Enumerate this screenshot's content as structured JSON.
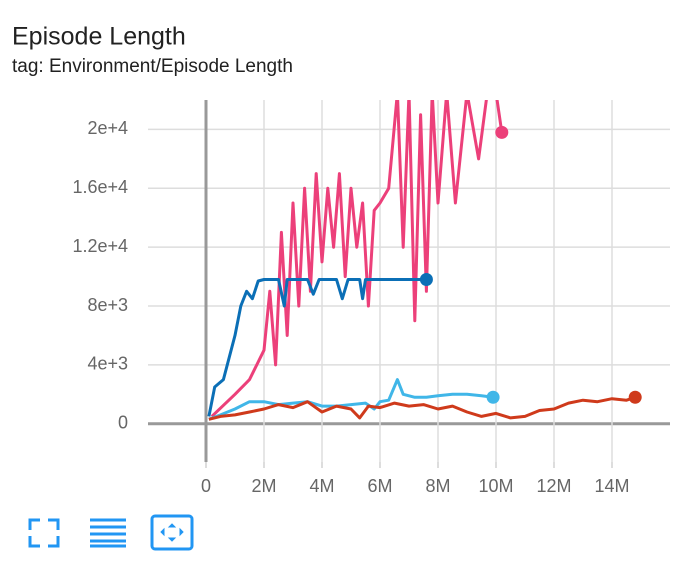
{
  "chart_data": {
    "type": "line",
    "title": "Episode Length",
    "subtitle": "tag: Environment/Episode Length",
    "xlim": [
      -2000000,
      16000000
    ],
    "ylim": [
      -2600,
      22000
    ],
    "xticks": [
      0,
      {
        "value": 2000000,
        "label": "2M"
      },
      {
        "value": 4000000,
        "label": "4M"
      },
      {
        "value": 6000000,
        "label": "6M"
      },
      {
        "value": 8000000,
        "label": "8M"
      },
      {
        "value": 10000000,
        "label": "10M"
      },
      {
        "value": 12000000,
        "label": "12M"
      },
      {
        "value": 14000000,
        "label": "14M"
      }
    ],
    "yticks": [
      0,
      {
        "value": 4000,
        "label": "4e+3"
      },
      {
        "value": 8000,
        "label": "8e+3"
      },
      {
        "value": 12000,
        "label": "1.2e+4"
      },
      {
        "value": 16000,
        "label": "1.6e+4"
      },
      {
        "value": 20000,
        "label": "2e+4"
      }
    ],
    "grid": true,
    "series": [
      {
        "color": "#ec407a",
        "x": [
          200000,
          1000000,
          1500000,
          2000000,
          2200000,
          2400000,
          2600000,
          2800000,
          3000000,
          3200000,
          3400000,
          3600000,
          3800000,
          4000000,
          4200000,
          4400000,
          4600000,
          4800000,
          5000000,
          5200000,
          5400000,
          5600000,
          5800000,
          6000000,
          6300000,
          6600000,
          6800000,
          7000000,
          7200000,
          7400000,
          7600000,
          7800000,
          8000000,
          8300000,
          8600000,
          9000000,
          9400000,
          9700000,
          10000000,
          10200000
        ],
        "values": [
          500,
          2000,
          3000,
          5000,
          9000,
          4000,
          13000,
          6000,
          15000,
          8000,
          16000,
          9000,
          17000,
          11000,
          16000,
          12000,
          17000,
          10000,
          16000,
          12000,
          15000,
          8000,
          14500,
          15000,
          16000,
          22500,
          12000,
          22500,
          7000,
          21000,
          9000,
          22500,
          15000,
          22500,
          15000,
          22500,
          18000,
          22500,
          22500,
          19800
        ]
      },
      {
        "color": "#40b6e8",
        "x": [
          100000,
          500000,
          1000000,
          1500000,
          2000000,
          2500000,
          3000000,
          3500000,
          4000000,
          4500000,
          5000000,
          5500000,
          5800000,
          6000000,
          6300000,
          6600000,
          6800000,
          7200000,
          7600000,
          8000000,
          8500000,
          9000000,
          9500000,
          9900000
        ],
        "values": [
          300,
          600,
          1000,
          1500,
          1500,
          1300,
          1400,
          1500,
          1200,
          1200,
          1300,
          1400,
          1000,
          1500,
          1600,
          3000,
          2000,
          1800,
          1800,
          1900,
          2000,
          2000,
          1900,
          1800
        ]
      },
      {
        "color": "#0b6fb6",
        "x": [
          100000,
          300000,
          600000,
          800000,
          1000000,
          1200000,
          1400000,
          1600000,
          1800000,
          2000000,
          2500000,
          2700000,
          2800000,
          3500000,
          3700000,
          3900000,
          4500000,
          4700000,
          4900000,
          5300000,
          5400000,
          5500000,
          7600000
        ],
        "values": [
          500,
          2500,
          3000,
          4500,
          6000,
          8000,
          9000,
          8500,
          9700,
          9800,
          9800,
          8000,
          9800,
          9800,
          8800,
          9800,
          9800,
          8500,
          9800,
          9800,
          8500,
          9800,
          9800
        ]
      },
      {
        "color": "#cf3a1b",
        "x": [
          100000,
          500000,
          1000000,
          1500000,
          2000000,
          2500000,
          3000000,
          3500000,
          4000000,
          4500000,
          5000000,
          5300000,
          5600000,
          6000000,
          6500000,
          7000000,
          7500000,
          8000000,
          8500000,
          9000000,
          9500000,
          10000000,
          10500000,
          11000000,
          11500000,
          12000000,
          12500000,
          13000000,
          13500000,
          14000000,
          14500000,
          14800000
        ],
        "values": [
          300,
          500,
          600,
          800,
          1000,
          1300,
          1100,
          1500,
          800,
          1200,
          1000,
          400,
          1200,
          1100,
          1400,
          1200,
          1300,
          1000,
          1200,
          800,
          500,
          700,
          400,
          500,
          900,
          1000,
          1400,
          1600,
          1500,
          1700,
          1600,
          1800
        ]
      }
    ]
  }
}
